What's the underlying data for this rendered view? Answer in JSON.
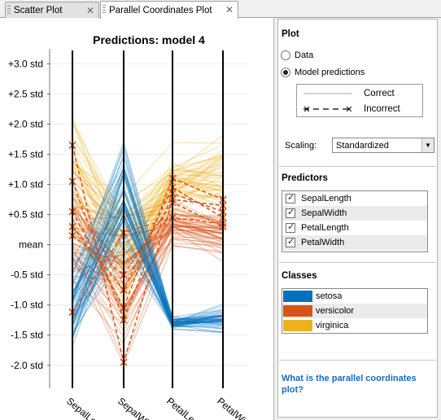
{
  "tabs": [
    {
      "label": "Scatter Plot",
      "active": false
    },
    {
      "label": "Parallel Coordinates Plot",
      "active": true
    }
  ],
  "chart_data": {
    "type": "parallel-coordinates",
    "title": "Predictions: model 4",
    "axes": [
      "SepalLength",
      "SepalWidth",
      "PetalLength",
      "PetalWidth"
    ],
    "ytick_labels": [
      "+3.0 std",
      "+2.5 std",
      "+2.0 std",
      "+1.5 std",
      "+1.0 std",
      "+0.5 std",
      "mean",
      "-0.5 std",
      "-1.0 std",
      "-1.5 std",
      "-2.0 std"
    ],
    "ytick_values": [
      3.0,
      2.5,
      2.0,
      1.5,
      1.0,
      0.5,
      0.0,
      -0.5,
      -1.0,
      -1.5,
      -2.0
    ],
    "ylim": [
      -2.3,
      3.1
    ],
    "grid": true,
    "line_alpha": 0.35,
    "series": [
      {
        "name": "setosa",
        "color": "#0072bd",
        "mean": [
          -1.0,
          0.85,
          -1.3,
          -1.25
        ],
        "spread": [
          0.35,
          0.45,
          0.05,
          0.1
        ],
        "count": 50
      },
      {
        "name": "versicolor",
        "color": "#d95319",
        "mean": [
          0.1,
          -0.65,
          0.3,
          0.15
        ],
        "spread": [
          0.5,
          0.5,
          0.15,
          0.15
        ],
        "count": 50
      },
      {
        "name": "virginica",
        "color": "#edb120",
        "mean": [
          0.9,
          -0.1,
          1.0,
          1.1
        ],
        "spread": [
          0.55,
          0.45,
          0.22,
          0.25
        ],
        "count": 50
      }
    ],
    "incorrect": [
      [
        1.65,
        -1.95,
        0.75,
        0.65
      ],
      [
        1.05,
        -1.25,
        0.85,
        0.55
      ],
      [
        0.55,
        -1.05,
        1.1,
        0.75
      ],
      [
        0.3,
        -0.75,
        0.95,
        0.45
      ],
      [
        0.15,
        -0.5,
        0.7,
        0.3
      ],
      [
        -1.12,
        0.2,
        0.45,
        0.35
      ]
    ],
    "incorrect_color": "#d95319"
  },
  "side": {
    "plot": {
      "title": "Plot",
      "options": [
        {
          "label": "Data",
          "selected": false
        },
        {
          "label": "Model predictions",
          "selected": true
        }
      ],
      "legend": {
        "correct": "Correct",
        "incorrect": "Incorrect"
      },
      "scaling_label": "Scaling:",
      "scaling_value": "Standardized"
    },
    "predictors": {
      "title": "Predictors",
      "items": [
        {
          "label": "SepalLength",
          "checked": true
        },
        {
          "label": "SepalWidth",
          "checked": true
        },
        {
          "label": "PetalLength",
          "checked": true
        },
        {
          "label": "PetalWidth",
          "checked": true
        }
      ]
    },
    "classes": {
      "title": "Classes",
      "items": [
        {
          "label": "setosa",
          "color": "#0072bd"
        },
        {
          "label": "versicolor",
          "color": "#d95319"
        },
        {
          "label": "virginica",
          "color": "#edb120"
        }
      ]
    },
    "help_link": "What is the parallel coordinates plot?"
  }
}
